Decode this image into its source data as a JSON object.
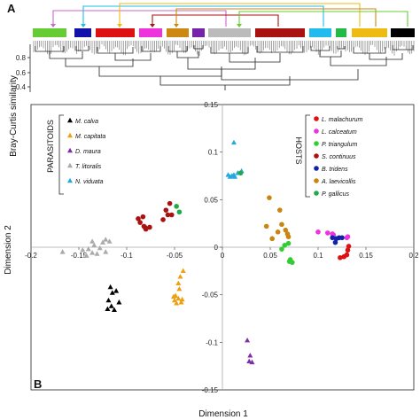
{
  "panels": {
    "a": "A",
    "b": "B"
  },
  "chart_data": [
    {
      "type": "dendrogram",
      "ylabel": "Bray-Curtis similarity",
      "yticks": [
        "0.8",
        "0.6",
        "0.4"
      ],
      "cluster_colors": [
        "#66cc33",
        "#1111aa",
        "#dd1111",
        "#ee33dd",
        "#cc8811",
        "#7722aa",
        "#bbbbbb",
        "#aa1111",
        "#22bbee",
        "#22bb44",
        "#eebb11",
        "#000000"
      ],
      "connector_colors": [
        "#cc66cc",
        "#22bbee",
        "#eebb11",
        "#aa1111",
        "#cc8811",
        "#66cc33"
      ]
    },
    {
      "type": "scatter",
      "xlabel": "Dimension 1",
      "ylabel": "Dimension 2",
      "xlim": [
        -0.2,
        0.2
      ],
      "ylim": [
        -0.15,
        0.15
      ],
      "xticks": [
        "-0.2",
        "-0.15",
        "-0.1",
        "-0.05",
        "0",
        "0.05",
        "0.1",
        "0.15",
        "0.2"
      ],
      "yticks": [
        "0.15",
        "0.1",
        "0.05",
        "0",
        "-0.05",
        "-0.1",
        "-0.15"
      ],
      "legend_parasitoids": {
        "title": "PARASITOIDS",
        "entries": [
          "M. calva",
          "M. capitata",
          "D. maura",
          "T. litoralis",
          "N. viduata"
        ]
      },
      "legend_hosts": {
        "title": "HOSTS",
        "entries": [
          "L. malachurum",
          "L. calceatum",
          "P. triangulum",
          "S. continuus",
          "B. tridens",
          "A. laevicollis",
          "P. gallicus"
        ]
      },
      "series": [
        {
          "name": "M. calva",
          "marker": "triangle",
          "color": "#000000",
          "points": [
            [
              -0.117,
              -0.042
            ],
            [
              -0.115,
              -0.048
            ],
            [
              -0.111,
              -0.046
            ],
            [
              -0.119,
              -0.056
            ],
            [
              -0.108,
              -0.058
            ],
            [
              -0.116,
              -0.062
            ],
            [
              -0.12,
              -0.065
            ],
            [
              -0.113,
              -0.066
            ]
          ]
        },
        {
          "name": "M. capitata",
          "marker": "triangle",
          "color": "#eea011",
          "points": [
            [
              -0.041,
              -0.025
            ],
            [
              -0.044,
              -0.031
            ],
            [
              -0.046,
              -0.038
            ],
            [
              -0.045,
              -0.044
            ],
            [
              -0.049,
              -0.051
            ],
            [
              -0.051,
              -0.052
            ],
            [
              -0.046,
              -0.054
            ],
            [
              -0.042,
              -0.055
            ],
            [
              -0.05,
              -0.056
            ],
            [
              -0.043,
              -0.058
            ],
            [
              -0.048,
              -0.059
            ]
          ]
        },
        {
          "name": "D. maura",
          "marker": "triangle",
          "color": "#7b2fa8",
          "points": [
            [
              0.026,
              -0.098
            ],
            [
              0.029,
              -0.114
            ],
            [
              0.028,
              -0.12
            ],
            [
              0.031,
              -0.121
            ]
          ]
        },
        {
          "name": "T. litoralis",
          "marker": "triangle",
          "color": "#aaaaaa",
          "points": [
            [
              -0.122,
              0.008
            ],
            [
              -0.136,
              0.006
            ],
            [
              -0.118,
              0.006
            ],
            [
              -0.125,
              0.005
            ],
            [
              -0.134,
              0.002
            ],
            [
              -0.14,
              -0.002
            ],
            [
              -0.128,
              -0.001
            ],
            [
              -0.146,
              -0.003
            ],
            [
              -0.122,
              -0.005
            ],
            [
              -0.136,
              -0.006
            ],
            [
              -0.167,
              -0.005
            ],
            [
              -0.131,
              -0.007
            ],
            [
              -0.142,
              -0.009
            ]
          ]
        },
        {
          "name": "N. viduata",
          "marker": "triangle",
          "color": "#22aadd",
          "points": [
            [
              0.012,
              0.11
            ],
            [
              0.02,
              0.08
            ],
            [
              0.006,
              0.076
            ],
            [
              0.01,
              0.075
            ],
            [
              0.012,
              0.076
            ],
            [
              0.013,
              0.074
            ],
            [
              0.008,
              0.074
            ],
            [
              0.016,
              0.078
            ]
          ]
        },
        {
          "name": "L. malachurum",
          "marker": "circle",
          "color": "#dd1111",
          "points": [
            [
              0.132,
              0.001
            ],
            [
              0.131,
              -0.003
            ],
            [
              0.13,
              -0.008
            ],
            [
              0.127,
              -0.01
            ],
            [
              0.123,
              -0.011
            ]
          ]
        },
        {
          "name": "L. calceatum",
          "marker": "circle",
          "color": "#ee33dd",
          "points": [
            [
              0.1,
              0.016
            ],
            [
              0.11,
              0.015
            ],
            [
              0.115,
              0.014
            ],
            [
              0.116,
              0.013
            ],
            [
              0.131,
              0.011
            ],
            [
              0.13,
              0.01
            ]
          ]
        },
        {
          "name": "P. triangulum",
          "marker": "circle",
          "color": "#33cc33",
          "points": [
            [
              0.069,
              0.004
            ],
            [
              0.065,
              0.002
            ],
            [
              0.062,
              -0.002
            ],
            [
              0.071,
              -0.013
            ],
            [
              0.07,
              -0.015
            ],
            [
              0.073,
              -0.016
            ]
          ]
        },
        {
          "name": "S. continuus",
          "marker": "circle",
          "color": "#aa1111",
          "points": [
            [
              -0.088,
              0.03
            ],
            [
              -0.083,
              0.032
            ],
            [
              -0.086,
              0.026
            ],
            [
              -0.082,
              0.022
            ],
            [
              -0.081,
              0.021
            ],
            [
              -0.076,
              0.021
            ],
            [
              -0.08,
              0.019
            ],
            [
              -0.062,
              0.029
            ],
            [
              -0.057,
              0.034
            ],
            [
              -0.053,
              0.034
            ],
            [
              -0.059,
              0.039
            ],
            [
              -0.055,
              0.046
            ]
          ]
        },
        {
          "name": "B. tridens",
          "marker": "circle",
          "color": "#1122aa",
          "points": [
            [
              0.115,
              0.01
            ],
            [
              0.119,
              0.009
            ],
            [
              0.122,
              0.01
            ],
            [
              0.125,
              0.01
            ],
            [
              0.118,
              0.005
            ]
          ]
        },
        {
          "name": "A. laevicollis",
          "marker": "circle",
          "color": "#c8860f",
          "points": [
            [
              0.049,
              0.052
            ],
            [
              0.06,
              0.039
            ],
            [
              0.062,
              0.024
            ],
            [
              0.058,
              0.016
            ],
            [
              0.066,
              0.018
            ],
            [
              0.069,
              0.011
            ],
            [
              0.068,
              0.014
            ],
            [
              0.046,
              0.022
            ],
            [
              0.052,
              0.009
            ]
          ]
        },
        {
          "name": "P. gallicus",
          "marker": "circle",
          "color": "#22aa44",
          "points": [
            [
              0.019,
              0.078
            ],
            [
              -0.048,
              0.043
            ],
            [
              -0.045,
              0.037
            ]
          ]
        }
      ]
    }
  ]
}
